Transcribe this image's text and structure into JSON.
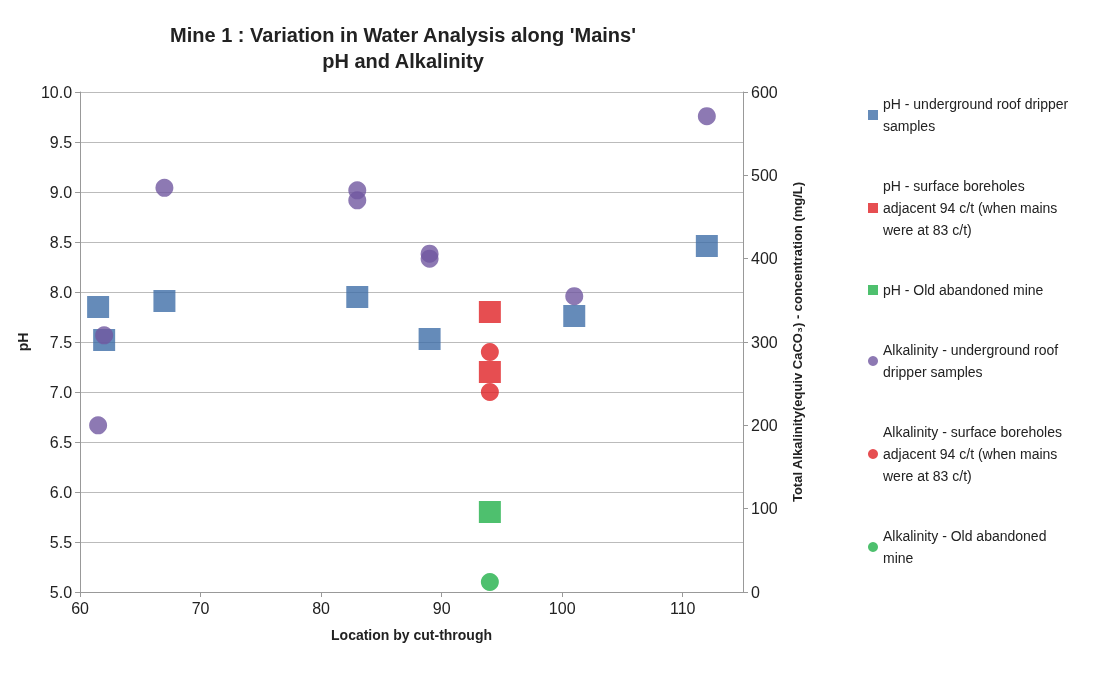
{
  "chart_data": {
    "type": "scatter",
    "title": "Mine 1 : Variation in Water Analysis along 'Mains'",
    "subtitle": "pH and Alkalinity",
    "xlabel": "Location by cut-through",
    "ylabel": "pH",
    "y2label": "Total Alkalinity(equiv CaCO₃) - concentration (mg/L)",
    "xlim": [
      60,
      115
    ],
    "xticks": [
      60,
      70,
      80,
      90,
      100,
      110
    ],
    "ylim": [
      5,
      10
    ],
    "yticks": [
      {
        "value": 5,
        "label": "5.0"
      },
      5.5,
      {
        "value": 6,
        "label": "6.0"
      },
      6.5,
      {
        "value": 7,
        "label": "7.0"
      },
      7.5,
      {
        "value": 8,
        "label": "8.0"
      },
      8.5,
      {
        "value": 9,
        "label": "9.0"
      },
      9.5,
      {
        "value": 10,
        "label": "10.0"
      }
    ],
    "y2lim": [
      0,
      600
    ],
    "y2ticks": [
      0,
      100,
      200,
      300,
      400,
      500,
      600
    ],
    "grid": "y",
    "legend": "right",
    "series": [
      {
        "name": "pH - underground roof dripper samples",
        "color": "#3f6ea8",
        "marker": "square",
        "x": [
          61.5,
          62,
          67,
          83,
          89,
          101,
          112
        ],
        "values": [
          7.85,
          7.52,
          7.91,
          7.95,
          7.53,
          7.76,
          8.46
        ]
      },
      {
        "name": "pH - surface boreholes adjacent 94 c/t (when mains were at 83 c/t)",
        "color": "#e02226",
        "marker": "square",
        "x": [
          94,
          94
        ],
        "values": [
          7.8,
          7.2
        ]
      },
      {
        "name": "pH - Old abandoned mine",
        "color": "#22b04a",
        "marker": "square",
        "x": [
          94
        ],
        "values": [
          5.8
        ]
      },
      {
        "name": "Alkalinity - underground roof dripper samples",
        "color": "#7058a0",
        "marker": "circle",
        "axis": "y2",
        "x": [
          61.5,
          62,
          67,
          83,
          83,
          89,
          89,
          101,
          112
        ],
        "values": [
          200,
          308,
          485,
          482,
          470,
          406,
          400,
          355,
          571
        ]
      },
      {
        "name": "Alkalinity - surface boreholes adjacent 94 c/t (when mains were at 83 c/t)",
        "color": "#e02226",
        "marker": "circle",
        "axis": "y2",
        "x": [
          94,
          94
        ],
        "values": [
          288,
          240
        ]
      },
      {
        "name": "Alkalinity - Old abandoned mine",
        "color": "#22b04a",
        "marker": "circle",
        "axis": "y2",
        "x": [
          94
        ],
        "values": [
          12
        ]
      }
    ]
  }
}
